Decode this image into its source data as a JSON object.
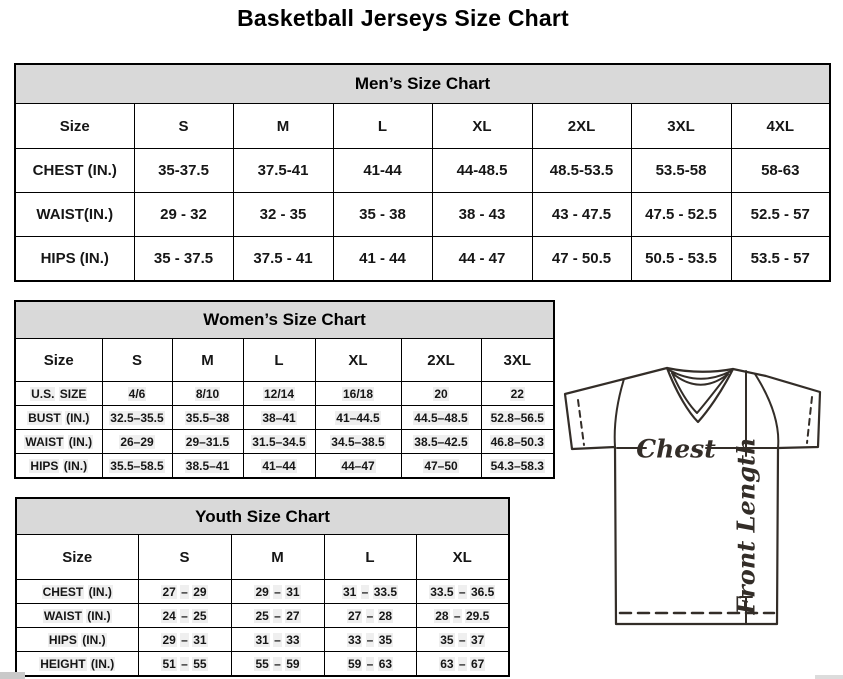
{
  "page_title": "Basketball Jerseys Size Chart",
  "mens_chart": {
    "title": "Men’s Size Chart",
    "columns": [
      "Size",
      "S",
      "M",
      "L",
      "XL",
      "2XL",
      "3XL",
      "4XL"
    ],
    "rows": [
      {
        "label": "CHEST (IN.)",
        "values": [
          "35-37.5",
          "37.5-41",
          "41-44",
          "44-48.5",
          "48.5-53.5",
          "53.5-58",
          "58-63"
        ]
      },
      {
        "label": "WAIST(IN.)",
        "values": [
          "29 - 32",
          "32 - 35",
          "35 - 38",
          "38 - 43",
          "43 - 47.5",
          "47.5 - 52.5",
          "52.5 - 57"
        ]
      },
      {
        "label": "HIPS (IN.)",
        "values": [
          "35 - 37.5",
          "37.5 - 41",
          "41 - 44",
          "44 - 47",
          "47 - 50.5",
          "50.5 - 53.5",
          "53.5 - 57"
        ]
      }
    ]
  },
  "womens_chart": {
    "title": "Women’s Size Chart",
    "columns": [
      "Size",
      "S",
      "M",
      "L",
      "XL",
      "2XL",
      "3XL"
    ],
    "rows": [
      {
        "label": "U.S. SIZE",
        "values": [
          "4/6",
          "8/10",
          "12/14",
          "16/18",
          "20",
          "22"
        ]
      },
      {
        "label": "BUST (IN.)",
        "values": [
          "32.5–35.5",
          "35.5–38",
          "38–41",
          "41–44.5",
          "44.5–48.5",
          "52.8–56.5"
        ]
      },
      {
        "label": "WAIST (IN.)",
        "values": [
          "26–29",
          "29–31.5",
          "31.5–34.5",
          "34.5–38.5",
          "38.5–42.5",
          "46.8–50.3"
        ]
      },
      {
        "label": "HIPS (IN.)",
        "values": [
          "35.5–58.5",
          "38.5–41",
          "41–44",
          "44–47",
          "47–50",
          "54.3–58.3"
        ]
      }
    ]
  },
  "youth_chart": {
    "title": "Youth Size Chart",
    "columns": [
      "Size",
      "S",
      "M",
      "L",
      "XL"
    ],
    "rows": [
      {
        "label": "CHEST (IN.)",
        "values": [
          "27 – 29",
          "29 – 31",
          "31 – 33.5",
          "33.5 – 36.5"
        ]
      },
      {
        "label": "WAIST (IN.)",
        "values": [
          "24 – 25",
          "25 – 27",
          "27 – 28",
          "28 – 29.5"
        ]
      },
      {
        "label": "HIPS (IN.)",
        "values": [
          "29 – 31",
          "31 – 33",
          "33 – 35",
          "35 – 37"
        ]
      },
      {
        "label": "HEIGHT (IN.)",
        "values": [
          "51 – 55",
          "55 – 59",
          "59 – 63",
          "63 – 67"
        ]
      }
    ]
  },
  "diagram": {
    "chest_label": "Chest",
    "front_length_label": "Front Length"
  },
  "colors": {
    "table_header_bg": "#d9d9d9",
    "table_border": "#000000",
    "diagram_ink": "#332d28",
    "text_highlight": "#efefef"
  }
}
